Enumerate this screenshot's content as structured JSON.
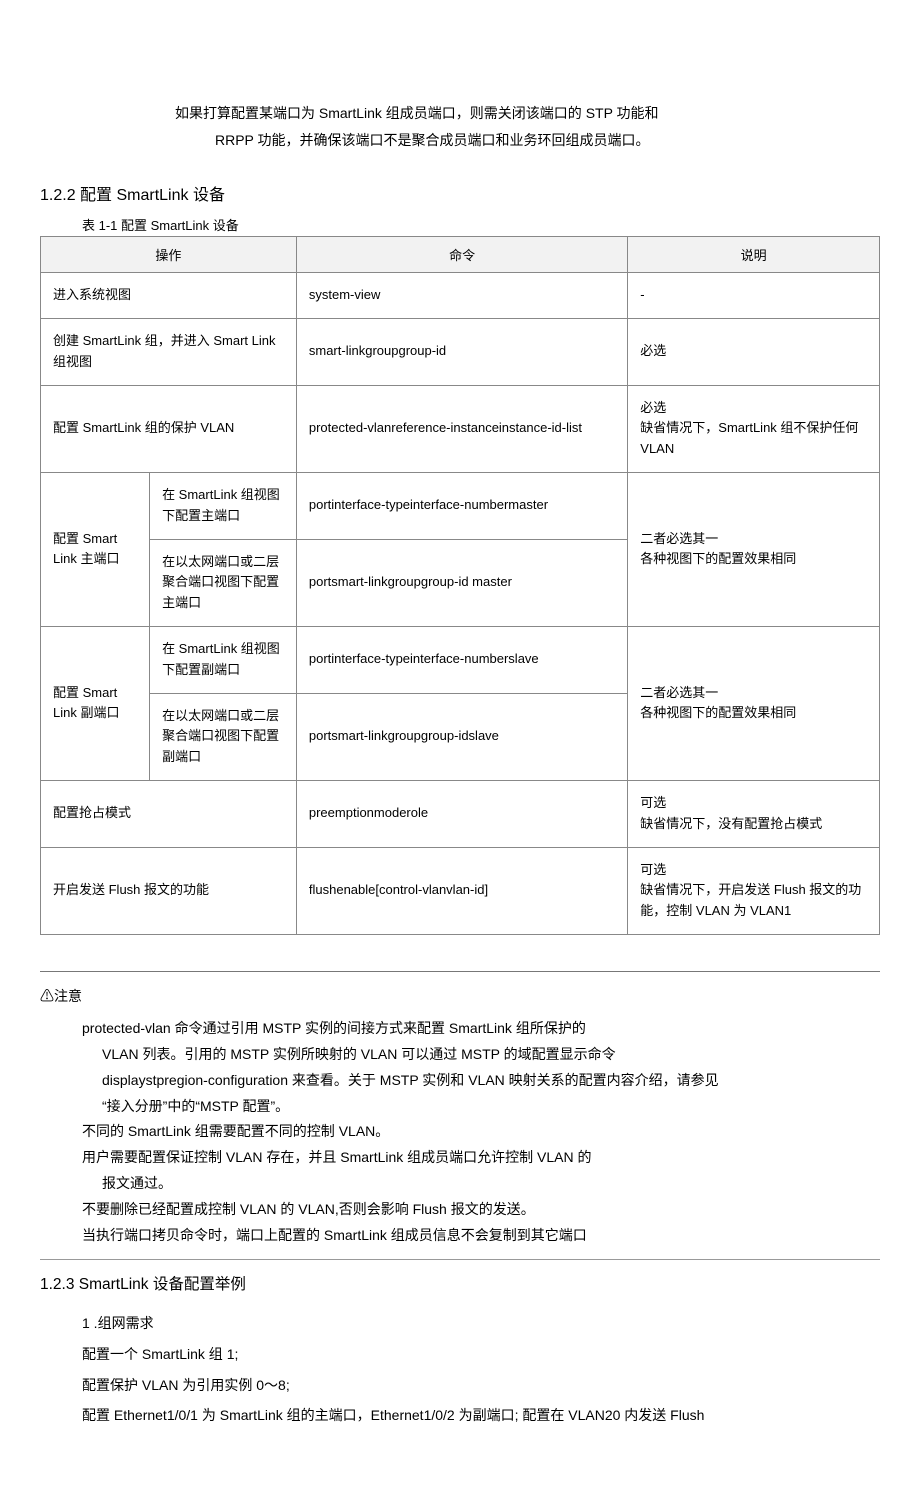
{
  "intro": {
    "l1": "如果打算配置某端口为 SmartLink 组成员端口，则需关闭该端口的 STP 功能和",
    "l2": "RRPP 功能，并确保该端口不是聚合成员端口和业务环回组成员端口。"
  },
  "section122": "1.2.2  配置 SmartLink 设备",
  "tblcap": "表 1-1 配置 SmartLink 设备",
  "th": {
    "op": "操作",
    "cmd": "命令",
    "desc": "说明"
  },
  "rows": {
    "r1": {
      "op": "进入系统视图",
      "cmd": "system-view",
      "desc": "-"
    },
    "r2": {
      "op": "创建 SmartLink 组，并进入 Smart Link 组视图",
      "cmd": "smart-linkgroupgroup-id",
      "desc": "必选"
    },
    "r3": {
      "op": "配置 SmartLink 组的保护 VLAN",
      "cmd": "protected-vlanreference-instanceinstance-id-list",
      "desc": "必选\n缺省情况下，SmartLink 组不保护任何 VLAN"
    },
    "r4": {
      "opA": "配置 Smart Link 主端口",
      "sub1": "在 SmartLink 组视图下配置主端口",
      "cmd1": "portinterface-typeinterface-numbermaster",
      "sub2": "在以太网端口或二层聚合端口视图下配置主端口",
      "cmd2": "portsmart-linkgroupgroup-id master",
      "desc": "二者必选其一\n各种视图下的配置效果相同"
    },
    "r5": {
      "opA": "配置 Smart Link 副端口",
      "sub1": "在 SmartLink 组视图下配置副端口",
      "cmd1": "portinterface-typeinterface-numberslave",
      "sub2": "在以太网端口或二层聚合端口视图下配置副端口",
      "cmd2": "portsmart-linkgroupgroup-idslave",
      "desc": "二者必选其一\n各种视图下的配置效果相同"
    },
    "r6": {
      "op": "配置抢占模式",
      "cmd": "preemptionmoderole",
      "desc": "可选\n缺省情况下，没有配置抢占模式"
    },
    "r7": {
      "op": "开启发送 Flush 报文的功能",
      "cmd": "flushenable[control-vlanvlan-id]",
      "desc": "可选\n缺省情况下，开启发送 Flush 报文的功能，控制 VLAN 为 VLAN1"
    }
  },
  "note": {
    "h": "⚠注意",
    "l1": "protected-vlan 命令通过引用 MSTP 实例的间接方式来配置 SmartLink 组所保护的",
    "l2": "VLAN 列表。引用的 MSTP 实例所映射的 VLAN 可以通过 MSTP 的域配置显示命令",
    "l3": "displaystpregion-configuration 来查看。关于 MSTP 实例和 VLAN 映射关系的配置内容介绍，请参见",
    "l4": "“接入分册”中的“MSTP 配置”。",
    "l5": "不同的 SmartLink 组需要配置不同的控制 VLAN。",
    "l6": "用户需要配置保证控制 VLAN 存在，并且 SmartLink 组成员端口允许控制 VLAN 的",
    "l7": "报文通过。",
    "l8": "不要删除已经配置成控制 VLAN 的 VLAN,否则会影响 Flush 报文的发送。",
    "l9": "当执行端口拷贝命令时，端口上配置的 SmartLink 组成员信息不会复制到其它端口"
  },
  "section123": "1.2.3   SmartLink 设备配置举例",
  "ex": {
    "l1": "1 .组网需求",
    "l2": "配置一个 SmartLink 组 1;",
    "l3": "配置保护 VLAN 为引用实例 0〜8;",
    "l4": "配置 Ethernet1/0/1 为 SmartLink 组的主端口，Ethernet1/0/2 为副端口; 配置在 VLAN20 内发送 Flush"
  },
  "colw": {
    "c1": "13%",
    "c2": "17.5%",
    "c3": "39.5%",
    "c4": "30%"
  }
}
